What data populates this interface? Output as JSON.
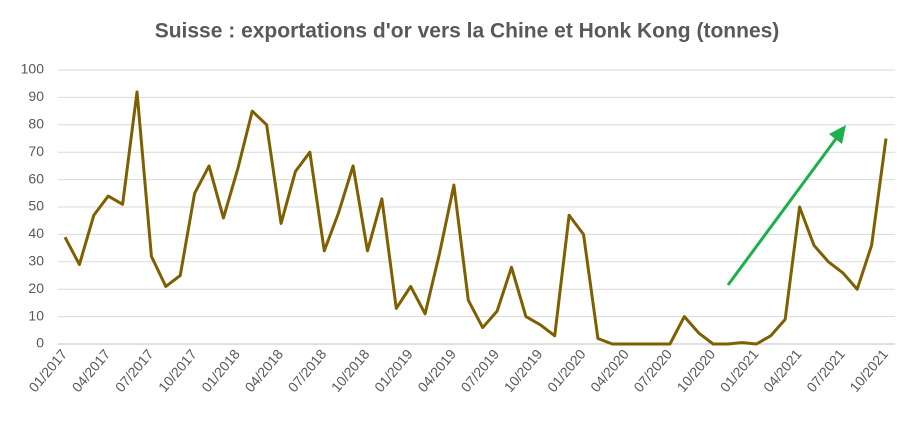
{
  "chart_data": {
    "type": "line",
    "title": "Suisse : exportations d'or vers la Chine et Honk Kong (tonnes)",
    "categories": [
      "01/2017",
      null,
      null,
      "04/2017",
      null,
      null,
      "07/2017",
      null,
      null,
      "10/2017",
      null,
      null,
      "01/2018",
      null,
      null,
      "04/2018",
      null,
      null,
      "07/2018",
      null,
      null,
      "10/2018",
      null,
      null,
      "01/2019",
      null,
      null,
      "04/2019",
      null,
      null,
      "07/2019",
      null,
      null,
      "10/2019",
      null,
      null,
      "01/2020",
      null,
      null,
      "04/2020",
      null,
      null,
      "07/2020",
      null,
      null,
      "10/2020",
      null,
      null,
      "01/2021",
      null,
      null,
      "04/2021",
      null,
      null,
      "07/2021",
      null,
      null,
      "10/2021"
    ],
    "series": [
      {
        "color": "#7f6000",
        "values": [
          39,
          29,
          47,
          54,
          51,
          92,
          32,
          21,
          25,
          55,
          65,
          46,
          64,
          85,
          80,
          44,
          63,
          70,
          34,
          48,
          65,
          34,
          53,
          13,
          21,
          11,
          33,
          58,
          16,
          6,
          12,
          28,
          10,
          7,
          3,
          47,
          40,
          2,
          0,
          0,
          0,
          0,
          0,
          10,
          4,
          0,
          0,
          0.5,
          0,
          3,
          9,
          50,
          36,
          30,
          26,
          20,
          36,
          75
        ]
      }
    ],
    "ylim": [
      0,
      100
    ],
    "yticks": [
      0,
      10,
      20,
      30,
      40,
      50,
      60,
      70,
      80,
      90,
      100
    ],
    "grid": true
  }
}
